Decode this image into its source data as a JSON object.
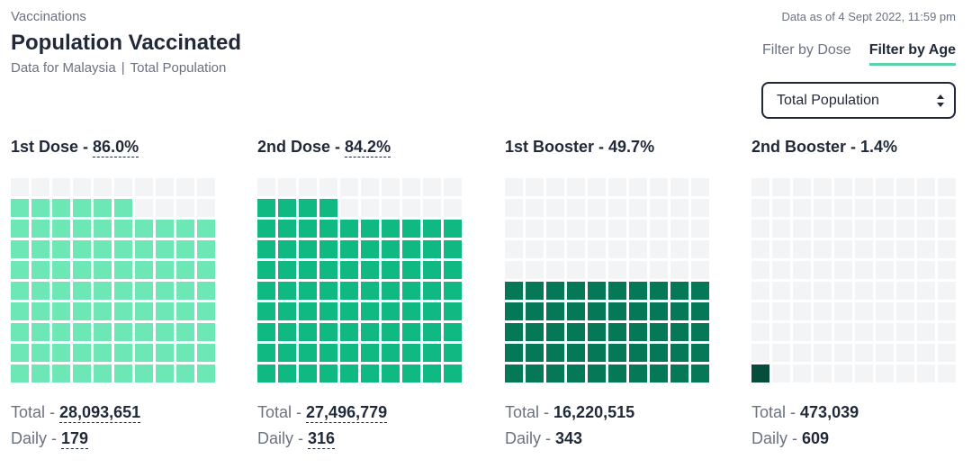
{
  "header": {
    "eyebrow": "Vaccinations",
    "title": "Population Vaccinated",
    "subtitle_region": "Data for Malaysia",
    "subtitle_sep": "|",
    "subtitle_scope": "Total Population",
    "timestamp": "Data as of 4 Sept 2022, 11:59 pm"
  },
  "tabs": [
    {
      "label": "Filter by Dose",
      "active": false
    },
    {
      "label": "Filter by Age",
      "active": true
    }
  ],
  "select": {
    "value": "Total Population"
  },
  "panels": [
    {
      "title": "1st Dose",
      "sep": " - ",
      "percent_label": "86.0%",
      "percent": 86.0,
      "color": "#6ee7b7",
      "total_label": "Total",
      "total": "28,093,651",
      "daily_label": "Daily",
      "daily": "179",
      "dotted": true
    },
    {
      "title": "2nd Dose",
      "sep": " - ",
      "percent_label": "84.2%",
      "percent": 84.2,
      "color": "#10b981",
      "total_label": "Total",
      "total": "27,496,779",
      "daily_label": "Daily",
      "daily": "316",
      "dotted": true
    },
    {
      "title": "1st Booster",
      "sep": " - ",
      "percent_label": "49.7%",
      "percent": 49.7,
      "color": "#047857",
      "total_label": "Total",
      "total": "16,220,515",
      "daily_label": "Daily",
      "daily": "343",
      "dotted": false
    },
    {
      "title": "2nd Booster",
      "sep": " - ",
      "percent_label": "1.4%",
      "percent": 1.4,
      "color": "#064e3b",
      "total_label": "Total",
      "total": "473,039",
      "daily_label": "Daily",
      "daily": "609",
      "dotted": false
    }
  ]
}
